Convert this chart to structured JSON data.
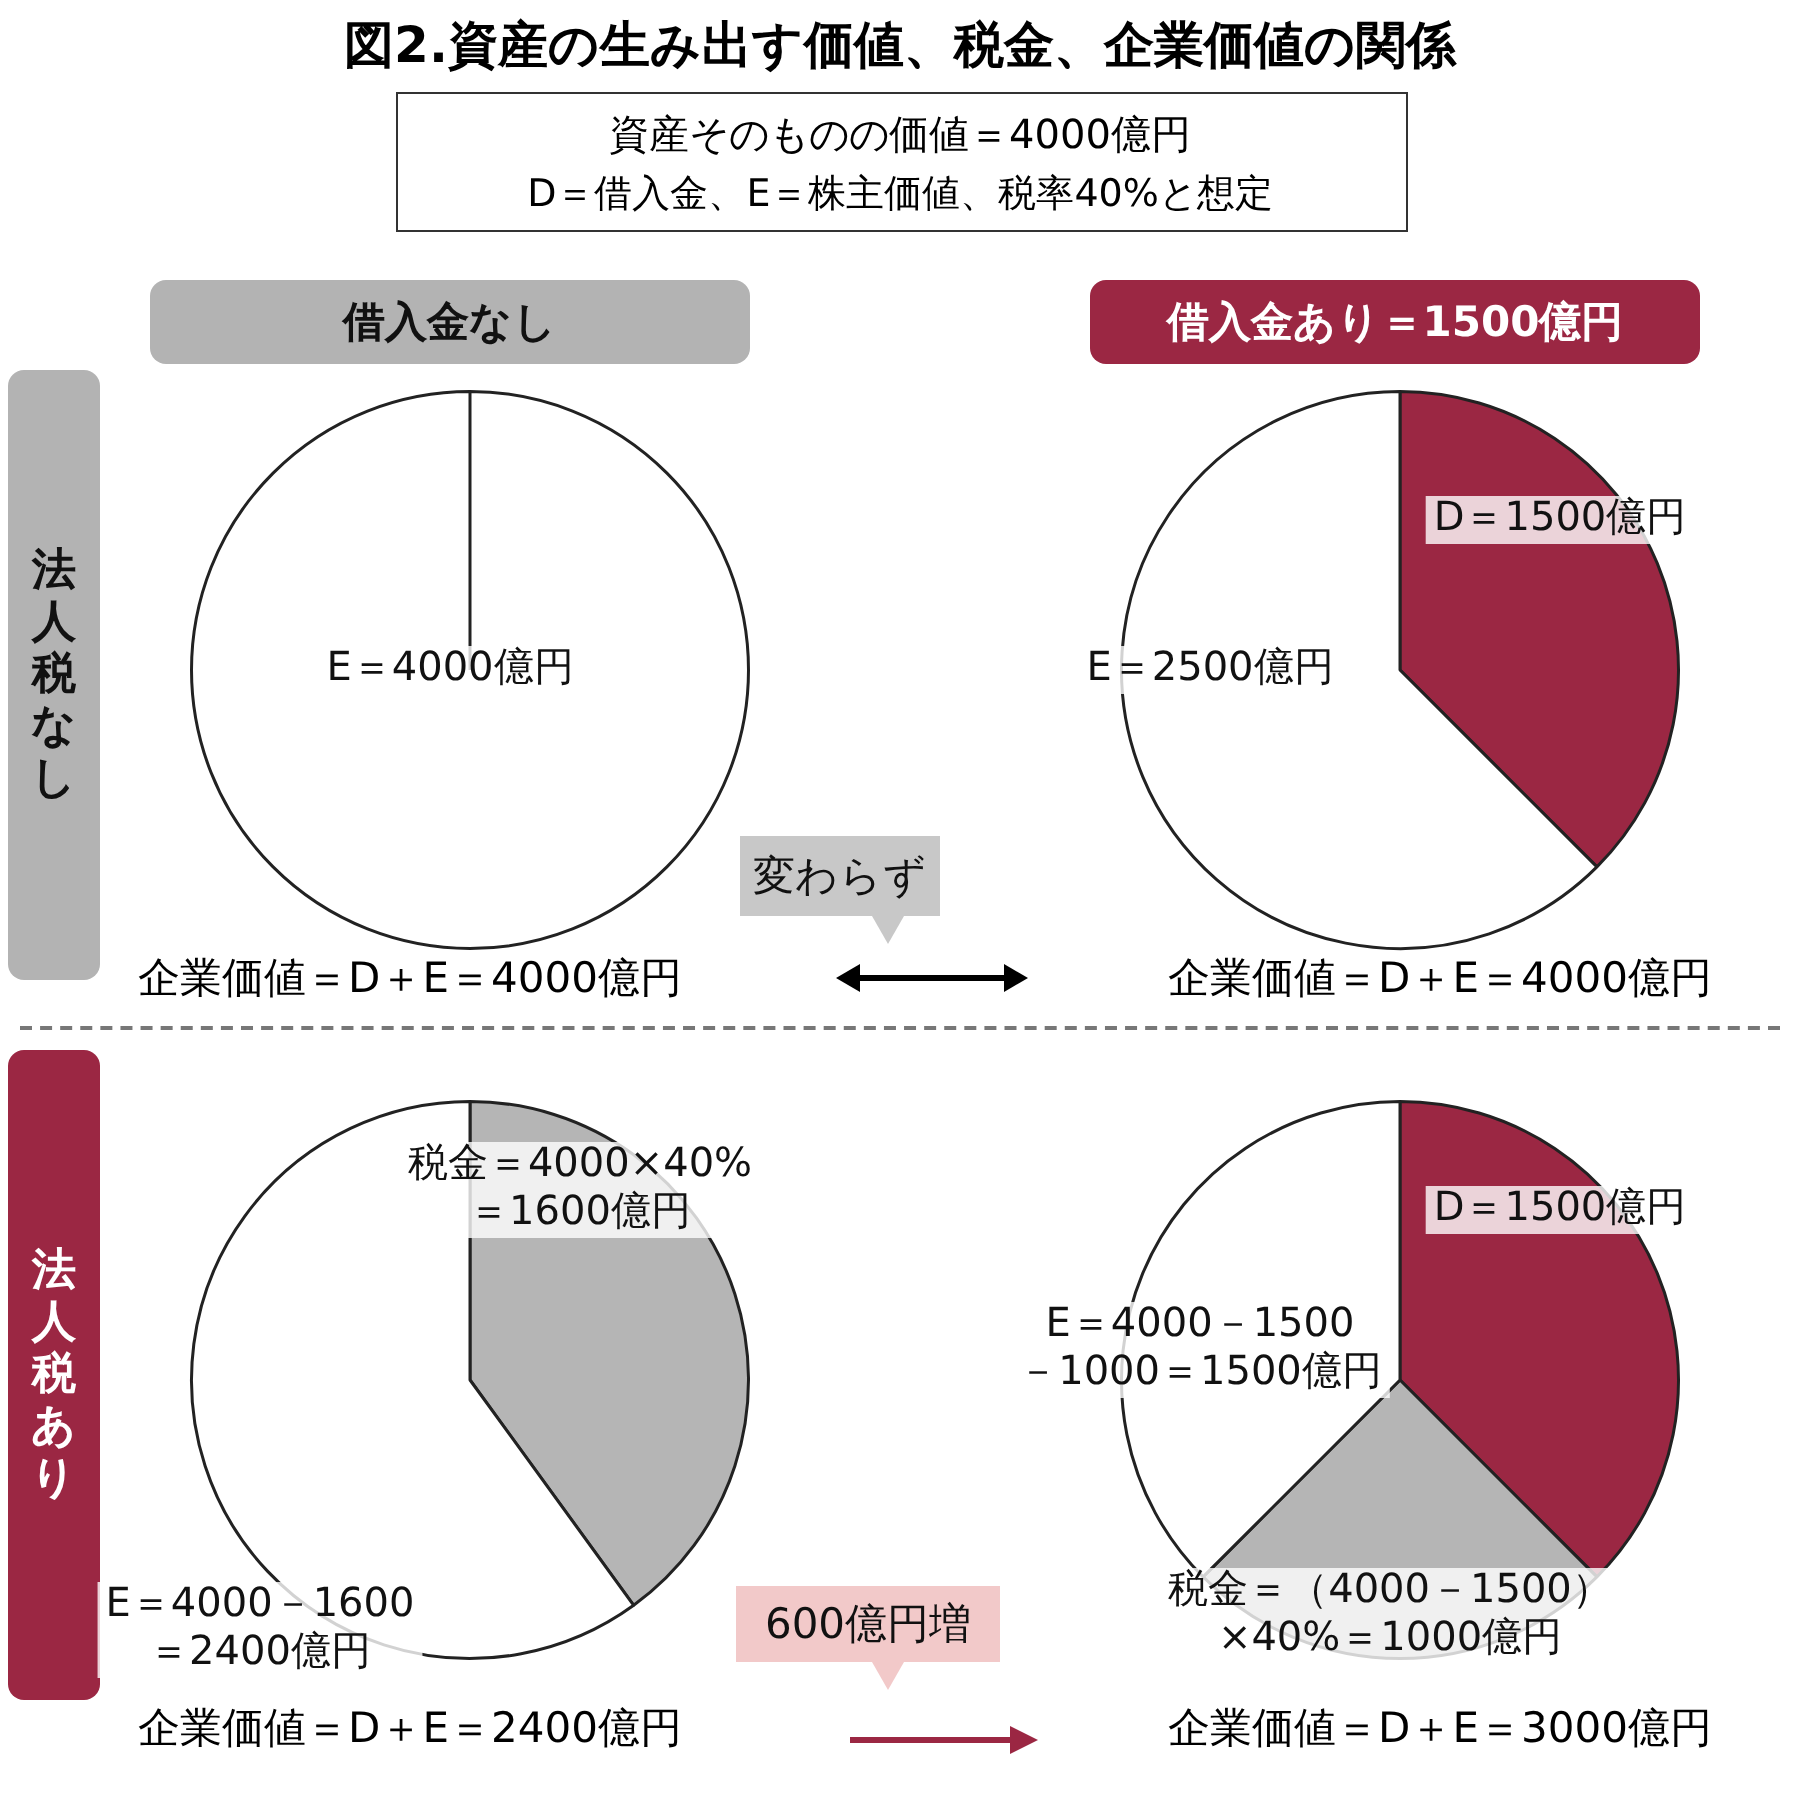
{
  "chart_data": [
    {
      "type": "other",
      "title": "図2.資産の生み出す価値、税金、企業価値の関係",
      "subtitle": "資産そのものの価値＝4000億円",
      "annotations": [
        "D＝借入金、E＝株主価値、税率40%と想定",
        "借入金なし",
        "借入金あり＝1500億円",
        "法人税なし",
        "法人税あり",
        "変わらず",
        "600億円増"
      ]
    },
    {
      "type": "pie",
      "categories": [
        "E＝4000億円"
      ],
      "values": [
        4000
      ],
      "colors": [
        "#ffffff"
      ],
      "annotations": [
        "企業価値＝D＋E＝4000億円"
      ]
    },
    {
      "type": "pie",
      "categories": [
        "D＝1500億円",
        "E＝2500億円"
      ],
      "values": [
        1500,
        2500
      ],
      "colors": [
        "#9b2743",
        "#ffffff"
      ],
      "annotations": [
        "企業価値＝D＋E＝4000億円"
      ]
    },
    {
      "type": "pie",
      "categories": [
        "税金＝4000×40%\n＝1600億円",
        "E＝4000－1600\n＝2400億円"
      ],
      "values": [
        1600,
        2400
      ],
      "colors": [
        "#b5b5b5",
        "#ffffff"
      ],
      "annotations": [
        "企業価値＝D＋E＝2400億円"
      ]
    },
    {
      "type": "pie",
      "categories": [
        "D＝1500億円",
        "税金＝（4000－1500）\n×40%＝1000億円",
        "E＝4000－1500\n－1000＝1500億円"
      ],
      "values": [
        1500,
        1000,
        1500
      ],
      "colors": [
        "#9b2743",
        "#b5b5b5",
        "#ffffff"
      ],
      "annotations": [
        "企業価値＝D＋E＝3000億円"
      ]
    }
  ]
}
